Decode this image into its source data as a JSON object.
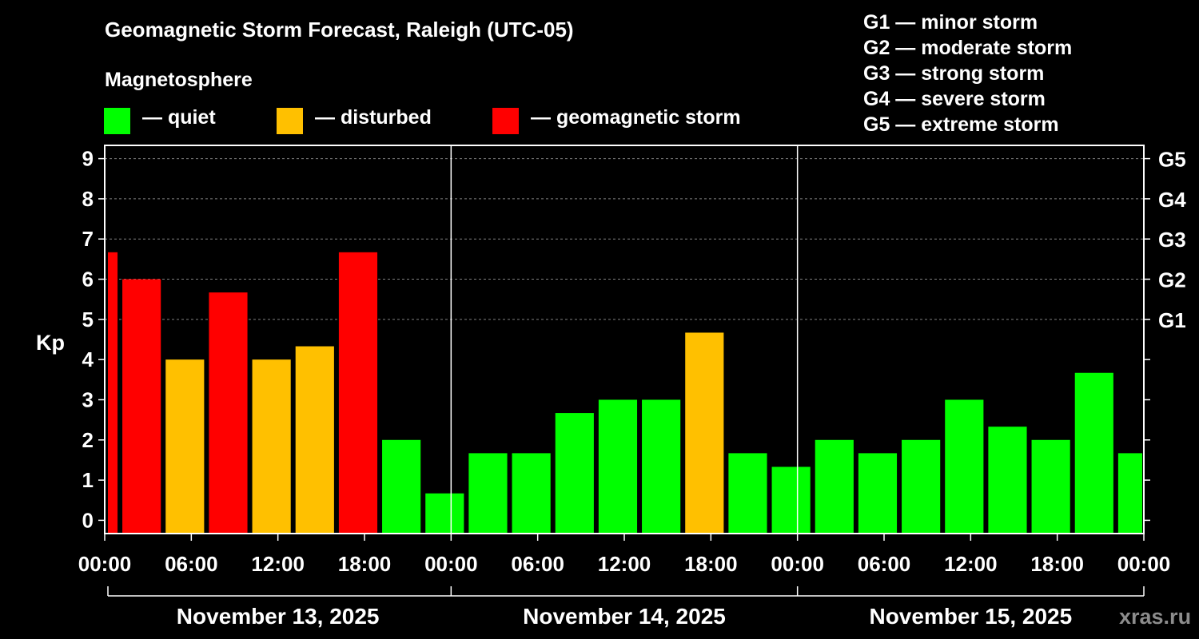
{
  "title": "Geomagnetic Storm Forecast, Raleigh (UTC-05)",
  "legend": {
    "title": "Magnetosphere",
    "items": [
      {
        "label": "— quiet",
        "color": "#00ff00"
      },
      {
        "label": "— disturbed",
        "color": "#ffc000"
      },
      {
        "label": "— geomagnetic storm",
        "color": "#ff0000"
      }
    ]
  },
  "g_scale": [
    "G1 — minor storm",
    "G2 — moderate storm",
    "G3 — strong storm",
    "G4 — severe storm",
    "G5 — extreme storm"
  ],
  "watermark": "xras.ru",
  "colors": {
    "quiet": "#00ff00",
    "disturbed": "#ffc000",
    "storm": "#ff0000",
    "axis": "#ffffff",
    "grid": "#808080"
  },
  "chart_data": {
    "type": "bar",
    "ylabel": "Kp",
    "ylim": [
      -0.33,
      9.33
    ],
    "yticks": [
      "0",
      "1",
      "2",
      "3",
      "4",
      "5",
      "6",
      "7",
      "8",
      "9"
    ],
    "right_labels": [
      {
        "kp": 5,
        "label": "G1"
      },
      {
        "kp": 6,
        "label": "G2"
      },
      {
        "kp": 7,
        "label": "G3"
      },
      {
        "kp": 8,
        "label": "G4"
      },
      {
        "kp": 9,
        "label": "G5"
      }
    ],
    "xticks": [
      "00:00",
      "06:00",
      "12:00",
      "18:00",
      "00:00",
      "06:00",
      "12:00",
      "18:00",
      "00:00",
      "06:00",
      "12:00",
      "18:00",
      "00:00"
    ],
    "days": [
      "November 13, 2025",
      "November 14, 2025",
      "November 15, 2025"
    ],
    "x_range_hours": [
      0,
      72
    ],
    "bars": [
      {
        "start": 0,
        "end": 1,
        "kp": 6.67,
        "level": "storm"
      },
      {
        "start": 1,
        "end": 4,
        "kp": 6.0,
        "level": "storm"
      },
      {
        "start": 4,
        "end": 7,
        "kp": 4.0,
        "level": "disturbed"
      },
      {
        "start": 7,
        "end": 10,
        "kp": 5.67,
        "level": "storm"
      },
      {
        "start": 10,
        "end": 13,
        "kp": 4.0,
        "level": "disturbed"
      },
      {
        "start": 13,
        "end": 16,
        "kp": 4.33,
        "level": "disturbed"
      },
      {
        "start": 16,
        "end": 19,
        "kp": 6.67,
        "level": "storm"
      },
      {
        "start": 19,
        "end": 22,
        "kp": 2.0,
        "level": "quiet"
      },
      {
        "start": 22,
        "end": 25,
        "kp": 0.67,
        "level": "quiet"
      },
      {
        "start": 25,
        "end": 28,
        "kp": 1.67,
        "level": "quiet"
      },
      {
        "start": 28,
        "end": 31,
        "kp": 1.67,
        "level": "quiet"
      },
      {
        "start": 31,
        "end": 34,
        "kp": 2.67,
        "level": "quiet"
      },
      {
        "start": 34,
        "end": 37,
        "kp": 3.0,
        "level": "quiet"
      },
      {
        "start": 37,
        "end": 40,
        "kp": 3.0,
        "level": "quiet"
      },
      {
        "start": 40,
        "end": 43,
        "kp": 4.67,
        "level": "disturbed"
      },
      {
        "start": 43,
        "end": 46,
        "kp": 1.67,
        "level": "quiet"
      },
      {
        "start": 46,
        "end": 49,
        "kp": 1.33,
        "level": "quiet"
      },
      {
        "start": 49,
        "end": 52,
        "kp": 2.0,
        "level": "quiet"
      },
      {
        "start": 52,
        "end": 55,
        "kp": 1.67,
        "level": "quiet"
      },
      {
        "start": 55,
        "end": 58,
        "kp": 2.0,
        "level": "quiet"
      },
      {
        "start": 58,
        "end": 61,
        "kp": 3.0,
        "level": "quiet"
      },
      {
        "start": 61,
        "end": 64,
        "kp": 2.33,
        "level": "quiet"
      },
      {
        "start": 64,
        "end": 67,
        "kp": 2.0,
        "level": "quiet"
      },
      {
        "start": 67,
        "end": 70,
        "kp": 3.67,
        "level": "quiet"
      },
      {
        "start": 70,
        "end": 72,
        "kp": 1.67,
        "level": "quiet"
      }
    ]
  }
}
